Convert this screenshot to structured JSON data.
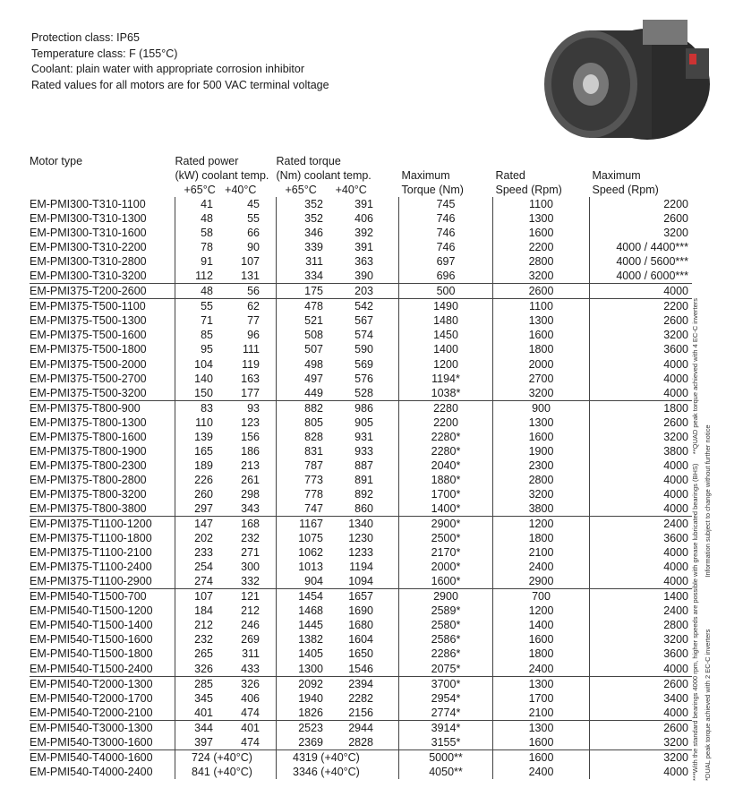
{
  "intro": [
    "Protection class: IP65",
    "Temperature class: F (155°C)",
    "Coolant: plain water with appropriate corrosion inhibitor",
    "Rated values for all motors are for 500 VAC terminal voltage"
  ],
  "headers": {
    "motor_type": "Motor type",
    "power_1": "Rated power",
    "power_2": "(kW) coolant temp.",
    "torque_1": "Rated torque",
    "torque_2": "(Nm) coolant temp.",
    "t65": "+65°C",
    "t40": "+40°C",
    "max_torque_1": "Maximum",
    "max_torque_2": "Torque (Nm)",
    "rated_speed_1": "Rated",
    "rated_speed_2": "Speed (Rpm)",
    "max_speed_1": "Maximum",
    "max_speed_2": "Speed (Rpm)"
  },
  "rows": [
    [
      "EM-PMI300-T310-1100",
      "41",
      "45",
      "352",
      "391",
      "745",
      "1100",
      "2200"
    ],
    [
      "EM-PMI300-T310-1300",
      "48",
      "55",
      "352",
      "406",
      "746",
      "1300",
      "2600"
    ],
    [
      "EM-PMI300-T310-1600",
      "58",
      "66",
      "346",
      "392",
      "746",
      "1600",
      "3200"
    ],
    [
      "EM-PMI300-T310-2200",
      "78",
      "90",
      "339",
      "391",
      "746",
      "2200",
      "4000 / 4400***"
    ],
    [
      "EM-PMI300-T310-2800",
      "91",
      "107",
      "311",
      "363",
      "697",
      "2800",
      "4000 / 5600***"
    ],
    [
      "EM-PMI300-T310-3200",
      "112",
      "131",
      "334",
      "390",
      "696",
      "3200",
      "4000 / 6000***"
    ],
    [
      "EM-PMI375-T200-2600",
      "48",
      "56",
      "175",
      "203",
      "500",
      "2600",
      "4000"
    ],
    [
      "EM-PMI375-T500-1100",
      "55",
      "62",
      "478",
      "542",
      "1490",
      "1100",
      "2200"
    ],
    [
      "EM-PMI375-T500-1300",
      "71",
      "77",
      "521",
      "567",
      "1480",
      "1300",
      "2600"
    ],
    [
      "EM-PMI375-T500-1600",
      "85",
      "96",
      "508",
      "574",
      "1450",
      "1600",
      "3200"
    ],
    [
      "EM-PMI375-T500-1800",
      "95",
      "111",
      "507",
      "590",
      "1400",
      "1800",
      "3600"
    ],
    [
      "EM-PMI375-T500-2000",
      "104",
      "119",
      "498",
      "569",
      "1200",
      "2000",
      "4000"
    ],
    [
      "EM-PMI375-T500-2700",
      "140",
      "163",
      "497",
      "576",
      "1194*",
      "2700",
      "4000"
    ],
    [
      "EM-PMI375-T500-3200",
      "150",
      "177",
      "449",
      "528",
      "1038*",
      "3200",
      "4000"
    ],
    [
      "EM-PMI375-T800-900",
      "83",
      "93",
      "882",
      "986",
      "2280",
      "900",
      "1800"
    ],
    [
      "EM-PMI375-T800-1300",
      "110",
      "123",
      "805",
      "905",
      "2200",
      "1300",
      "2600"
    ],
    [
      "EM-PMI375-T800-1600",
      "139",
      "156",
      "828",
      "931",
      "2280*",
      "1600",
      "3200"
    ],
    [
      "EM-PMI375-T800-1900",
      "165",
      "186",
      "831",
      "933",
      "2280*",
      "1900",
      "3800"
    ],
    [
      "EM-PMI375-T800-2300",
      "189",
      "213",
      "787",
      "887",
      "2040*",
      "2300",
      "4000"
    ],
    [
      "EM-PMI375-T800-2800",
      "226",
      "261",
      "773",
      "891",
      "1880*",
      "2800",
      "4000"
    ],
    [
      "EM-PMI375-T800-3200",
      "260",
      "298",
      "778",
      "892",
      "1700*",
      "3200",
      "4000"
    ],
    [
      "EM-PMI375-T800-3800",
      "297",
      "343",
      "747",
      "860",
      "1400*",
      "3800",
      "4000"
    ],
    [
      "EM-PMI375-T1100-1200",
      "147",
      "168",
      "1167",
      "1340",
      "2900*",
      "1200",
      "2400"
    ],
    [
      "EM-PMI375-T1100-1800",
      "202",
      "232",
      "1075",
      "1230",
      "2500*",
      "1800",
      "3600"
    ],
    [
      "EM-PMI375-T1100-2100",
      "233",
      "271",
      "1062",
      "1233",
      "2170*",
      "2100",
      "4000"
    ],
    [
      "EM-PMI375-T1100-2400",
      "254",
      "300",
      "1013",
      "1194",
      "2000*",
      "2400",
      "4000"
    ],
    [
      "EM-PMI375-T1100-2900",
      "274",
      "332",
      "904",
      "1094",
      "1600*",
      "2900",
      "4000"
    ],
    [
      "EM-PMI540-T1500-700",
      "107",
      "121",
      "1454",
      "1657",
      "2900",
      "700",
      "1400"
    ],
    [
      "EM-PMI540-T1500-1200",
      "184",
      "212",
      "1468",
      "1690",
      "2589*",
      "1200",
      "2400"
    ],
    [
      "EM-PMI540-T1500-1400",
      "212",
      "246",
      "1445",
      "1680",
      "2580*",
      "1400",
      "2800"
    ],
    [
      "EM-PMI540-T1500-1600",
      "232",
      "269",
      "1382",
      "1604",
      "2586*",
      "1600",
      "3200"
    ],
    [
      "EM-PMI540-T1500-1800",
      "265",
      "311",
      "1405",
      "1650",
      "2286*",
      "1800",
      "3600"
    ],
    [
      "EM-PMI540-T1500-2400",
      "326",
      "433",
      "1300",
      "1546",
      "2075*",
      "2400",
      "4000"
    ],
    [
      "EM-PMI540-T2000-1300",
      "285",
      "326",
      "2092",
      "2394",
      "3700*",
      "1300",
      "2600"
    ],
    [
      "EM-PMI540-T2000-1700",
      "345",
      "406",
      "1940",
      "2282",
      "2954*",
      "1700",
      "3400"
    ],
    [
      "EM-PMI540-T2000-2100",
      "401",
      "474",
      "1826",
      "2156",
      "2774*",
      "2100",
      "4000"
    ],
    [
      "EM-PMI540-T3000-1300",
      "344",
      "401",
      "2523",
      "2944",
      "3914*",
      "1300",
      "2600"
    ],
    [
      "EM-PMI540-T3000-1600",
      "397",
      "474",
      "2369",
      "2828",
      "3155*",
      "1600",
      "3200"
    ]
  ],
  "merged_rows": [
    [
      "EM-PMI540-T4000-1600",
      "724 (+40°C)",
      "4319 (+40°C)",
      "5000**",
      "1600",
      "3200"
    ],
    [
      "EM-PMI540-T4000-2400",
      "841 (+40°C)",
      "3346 (+40°C)",
      "4050**",
      "2400",
      "4000"
    ]
  ],
  "separators_before": [
    6,
    7,
    14,
    22,
    27,
    33,
    36,
    38
  ],
  "footnotes": {
    "triple": "***With the standard bearings 4000 rpm, higher speeds are possible with grease lubricated bearings (BHS)",
    "quad": "**QUAD peak torque achieved with 4 EC-C inverters",
    "dual": "*DUAL peak torque achieved with 2 EC-C inverters",
    "notice": "Information subject to change without further notice"
  }
}
